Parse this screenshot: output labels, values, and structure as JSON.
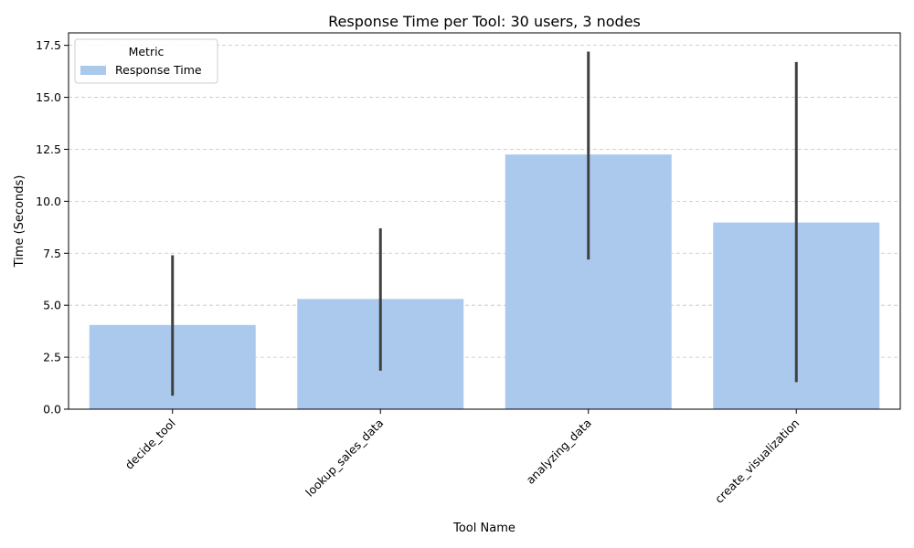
{
  "chart_data": {
    "type": "bar",
    "title": "Response Time per Tool: 30 users, 3 nodes",
    "xlabel": "Tool Name",
    "ylabel": "Time (Seconds)",
    "categories": [
      "decide_tool",
      "lookup_sales_data",
      "analyzing_data",
      "create_visualization"
    ],
    "series": [
      {
        "name": "Response Time",
        "values": [
          4.05,
          5.3,
          12.25,
          8.98
        ],
        "error_low": [
          0.65,
          1.85,
          7.2,
          1.3
        ],
        "error_high": [
          7.4,
          8.7,
          17.2,
          16.7
        ]
      }
    ],
    "ylim": [
      0,
      18.1
    ],
    "yticks": [
      "0.0",
      "2.5",
      "5.0",
      "7.5",
      "10.0",
      "12.5",
      "15.0",
      "17.5"
    ],
    "ytick_values": [
      0,
      2.5,
      5,
      7.5,
      10,
      12.5,
      15,
      17.5
    ],
    "grid": "y-dashed",
    "legend": {
      "title": "Metric",
      "placement": "top-left"
    },
    "colors": {
      "bar": "#abc9ed",
      "error": "#404040",
      "grid": "#c4c4c4"
    }
  }
}
